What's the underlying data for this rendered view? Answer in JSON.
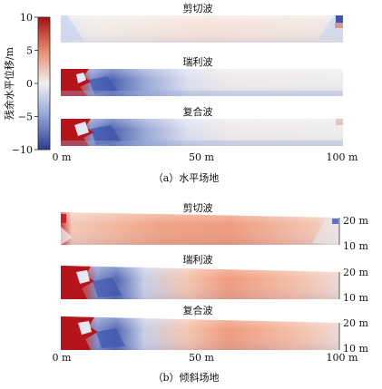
{
  "colorbar": {
    "label": "残余水平位移/m",
    "ticks": [
      "10",
      "5",
      "0",
      "−5",
      "−10"
    ],
    "colors": {
      "positive": "#b2182b",
      "zero": "#f0eeee",
      "negative": "#2c3e9a"
    }
  },
  "panel_a": {
    "caption": "（a）水平场地",
    "x_ticks": [
      "0 m",
      "50 m",
      "100 m"
    ],
    "strips": [
      {
        "title": "剪切波"
      },
      {
        "title": "瑞利波"
      },
      {
        "title": "复合波"
      }
    ]
  },
  "panel_b": {
    "caption": "（b）倾斜场地",
    "x_ticks": [
      "0 m",
      "50 m",
      "100 m"
    ],
    "depth_ticks": [
      "20 m",
      "10 m"
    ],
    "strips": [
      {
        "title": "剪切波"
      },
      {
        "title": "瑞利波"
      },
      {
        "title": "复合波"
      }
    ]
  }
}
